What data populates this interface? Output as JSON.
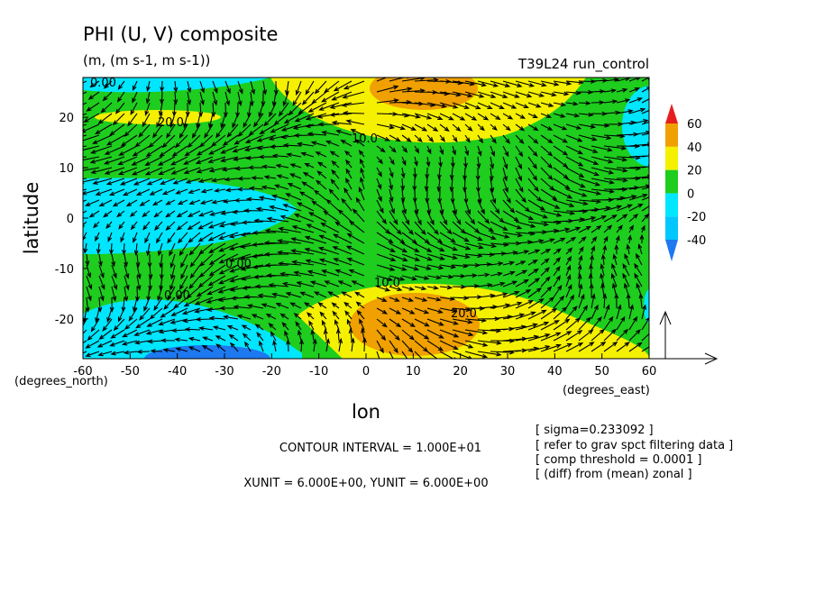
{
  "chart_data": {
    "type": "contour",
    "title": "PHI (U, V) composite",
    "subtitle": "(m, (m s-1, m s-1))",
    "run_label": "T39L24 run_control",
    "x_label": "lon",
    "y_label": "latitude",
    "x_unit_label": "(degrees_east)",
    "y_unit_label": "(degrees_north)",
    "xlim": [
      -60,
      60
    ],
    "ylim": [
      -27.9,
      27.9
    ],
    "xticks": [
      -60,
      -50,
      -40,
      -30,
      -20,
      -10,
      0,
      10,
      20,
      30,
      40,
      50,
      60
    ],
    "yticks": [
      -20,
      -10,
      0,
      10,
      20
    ],
    "colorbar": {
      "levels": [
        -40,
        -20,
        0,
        20,
        40,
        60
      ],
      "colors": [
        "#1e78f0",
        "#00c8ff",
        "#00e6ff",
        "#1ecd1e",
        "#f5f000",
        "#f0a000",
        "#e61e1e"
      ]
    },
    "contour_labels": [
      "0.00",
      "20.0",
      "10.0",
      "0.00",
      "0.00",
      "10.0",
      "20.0"
    ],
    "notes": [
      "CONTOUR INTERVAL = 1.000E+01",
      "XUNIT = 6.000E+00, YUNIT = 6.000E+00"
    ],
    "info": [
      "[ sigma=0.233092 ]",
      "[ refer to grav spct filtering data ]",
      "[ comp threshold = 0.0001 ]",
      "[ (diff) from (mean) zonal ]"
    ]
  }
}
